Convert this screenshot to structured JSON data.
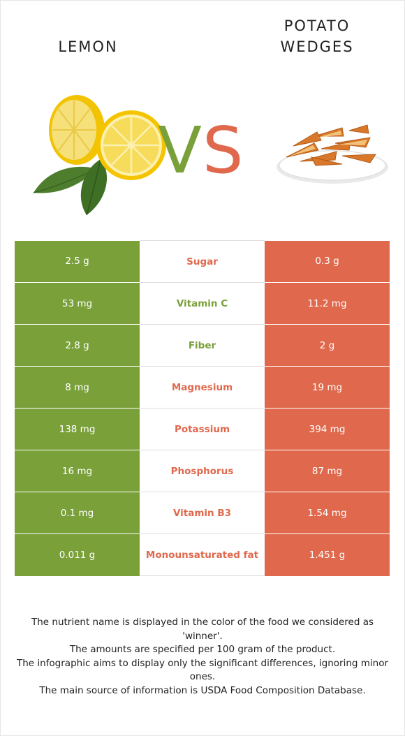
{
  "left_food": {
    "name": "LEMON",
    "color": "#7aa03a",
    "image_icon": "lemon-halves-icon"
  },
  "right_food": {
    "name_line1": "POTATO",
    "name_line2": "WEDGES",
    "color": "#e0694d",
    "image_icon": "potato-wedges-plate-icon"
  },
  "vs": {
    "v": "V",
    "s": "S"
  },
  "rows": [
    {
      "left": "2.5 g",
      "nutrient": "Sugar",
      "right": "0.3 g",
      "winner": "right"
    },
    {
      "left": "53 mg",
      "nutrient": "Vitamin C",
      "right": "11.2 mg",
      "winner": "left"
    },
    {
      "left": "2.8 g",
      "nutrient": "Fiber",
      "right": "2 g",
      "winner": "left"
    },
    {
      "left": "8 mg",
      "nutrient": "Magnesium",
      "right": "19 mg",
      "winner": "right"
    },
    {
      "left": "138 mg",
      "nutrient": "Potassium",
      "right": "394 mg",
      "winner": "right"
    },
    {
      "left": "16 mg",
      "nutrient": "Phosphorus",
      "right": "87 mg",
      "winner": "right"
    },
    {
      "left": "0.1 mg",
      "nutrient": "Vitamin B3",
      "right": "1.54 mg",
      "winner": "right"
    },
    {
      "left": "0.011 g",
      "nutrient": "Monounsaturated fat",
      "right": "1.451 g",
      "winner": "right"
    }
  ],
  "footnotes": [
    "The nutrient name is displayed in the color of the food we considered as 'winner'.",
    "The amounts are specified per 100 gram of the product.",
    "The infographic aims to display only the significant differences, ignoring minor ones.",
    "The main source of information is USDA Food Composition Database."
  ]
}
